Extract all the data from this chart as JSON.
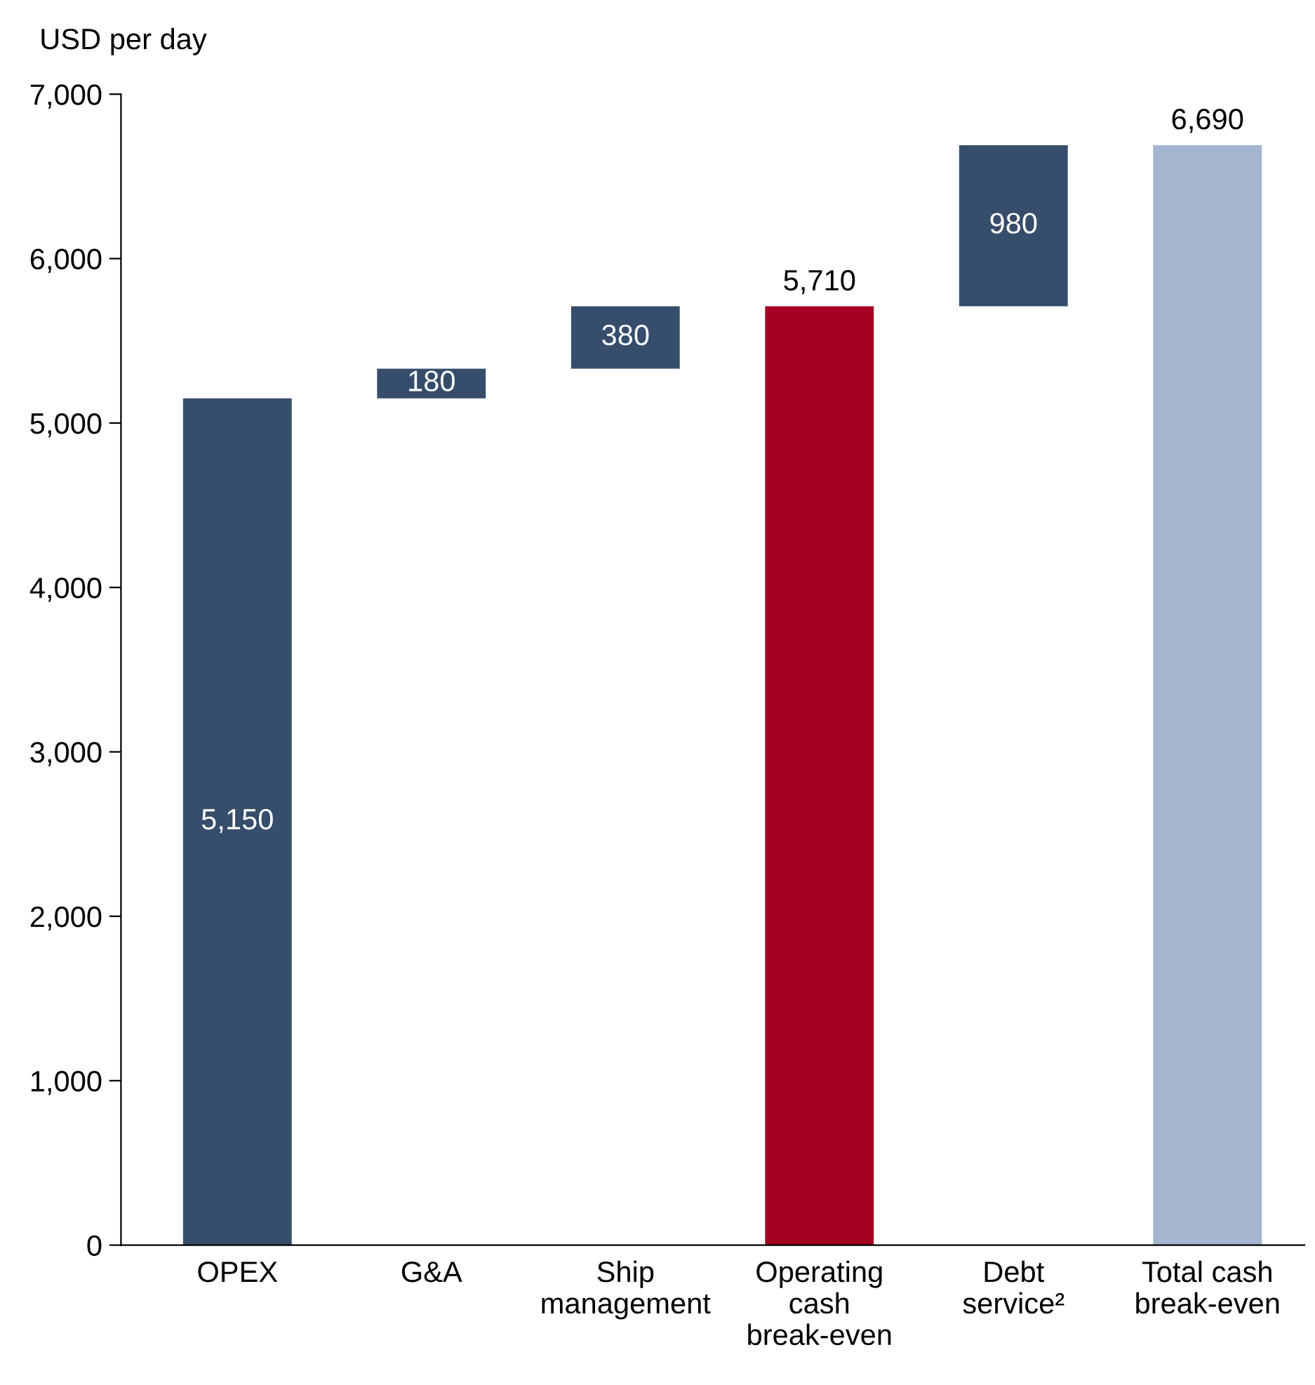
{
  "chart_data": {
    "type": "bar",
    "ylabel": "USD per day",
    "categories": [
      "OPEX",
      "G&A",
      "Ship\nmanagement",
      "Operating\ncash\nbreak-even",
      "Debt\nservice²",
      "Total cash\nbreak-even"
    ],
    "values": [
      5150,
      180,
      380,
      5710,
      980,
      6690
    ],
    "base": [
      0,
      5150,
      5330,
      0,
      5710,
      0
    ],
    "colors": [
      "#364d6b",
      "#364d6b",
      "#364d6b",
      "#a50021",
      "#364d6b",
      "#a3b5cf"
    ],
    "value_labels": [
      "5,150",
      "180",
      "380",
      "5,710",
      "980",
      "6,690"
    ],
    "ylim": [
      0,
      7000
    ],
    "yticks": [
      {
        "value": 0,
        "label": "0"
      },
      {
        "value": 1000,
        "label": "1,000"
      },
      {
        "value": 2000,
        "label": "2,000"
      },
      {
        "value": 3000,
        "label": "3,000"
      },
      {
        "value": 4000,
        "label": "4,000"
      },
      {
        "value": 5000,
        "label": "5,000"
      },
      {
        "value": 6000,
        "label": "6,000"
      },
      {
        "value": 7000,
        "label": "7,000"
      }
    ],
    "grid": false,
    "legend": false
  }
}
